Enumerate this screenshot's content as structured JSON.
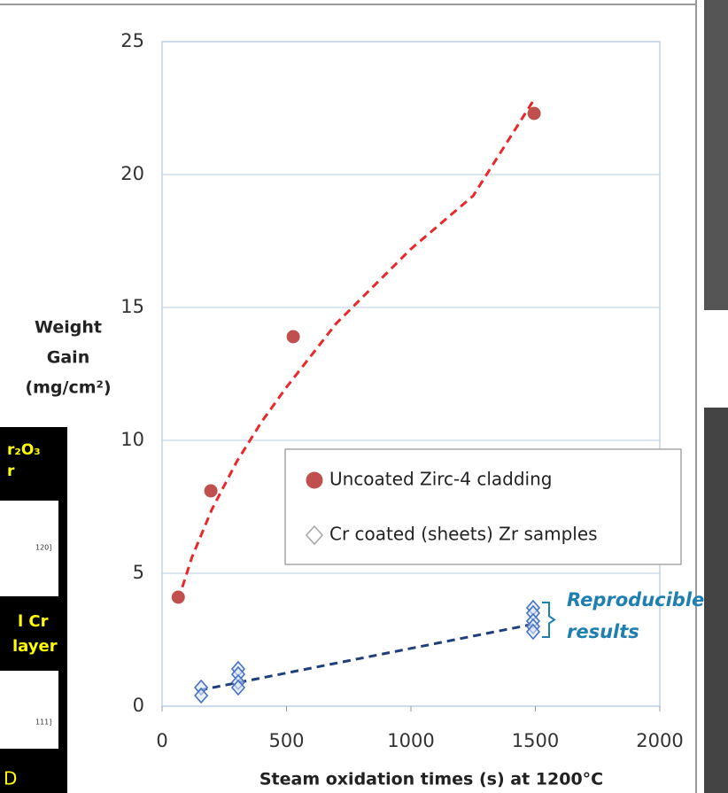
{
  "chart_data": {
    "type": "scatter",
    "y_label": [
      "Weight",
      "Gain",
      "(mg/cm²)"
    ],
    "x_label": "Steam oxidation times (s) at 1200°C",
    "xlim": [
      0,
      2000
    ],
    "xticks": [
      0,
      500,
      1000,
      1500,
      2000
    ],
    "ylim": [
      0,
      25
    ],
    "yticks": [
      0,
      5,
      10,
      15,
      20,
      25
    ],
    "grid": true,
    "legend_position": "center-right",
    "series": [
      {
        "name": "Uncoated Zirc-4 cladding",
        "color": "#c0504d",
        "marker": "circle",
        "x": [
          65,
          196,
          527,
          1495
        ],
        "values": [
          4.1,
          8.1,
          13.9,
          22.3
        ],
        "trend": {
          "x": [
            65,
            120,
            200,
            300,
            400,
            500,
            700,
            1000,
            1250,
            1500
          ],
          "values": [
            4.0,
            5.6,
            7.4,
            9.2,
            10.7,
            12.0,
            14.4,
            17.2,
            19.2,
            22.9
          ],
          "color": "#e8282a"
        }
      },
      {
        "name": "Cr coated (sheets) Zr samples",
        "color": "#4472c4",
        "marker": "diamond",
        "x": [
          157,
          157,
          306,
          306,
          306,
          306,
          1491,
          1491,
          1491,
          1491,
          1491
        ],
        "values": [
          0.7,
          0.4,
          1.4,
          1.2,
          0.9,
          0.7,
          3.7,
          3.5,
          3.2,
          3.0,
          2.8
        ],
        "trend": {
          "x": [
            150,
            1500
          ],
          "values": [
            0.6,
            3.1
          ],
          "color": "#1f3f7a"
        }
      }
    ],
    "annotation": {
      "text": [
        "Reproducible",
        "results"
      ],
      "color": "#1f7fb0"
    }
  },
  "fragments": {
    "left_panel": [
      "r₂O₃",
      "r",
      "120]",
      "l Cr",
      "layer",
      "111]",
      "D"
    ]
  }
}
